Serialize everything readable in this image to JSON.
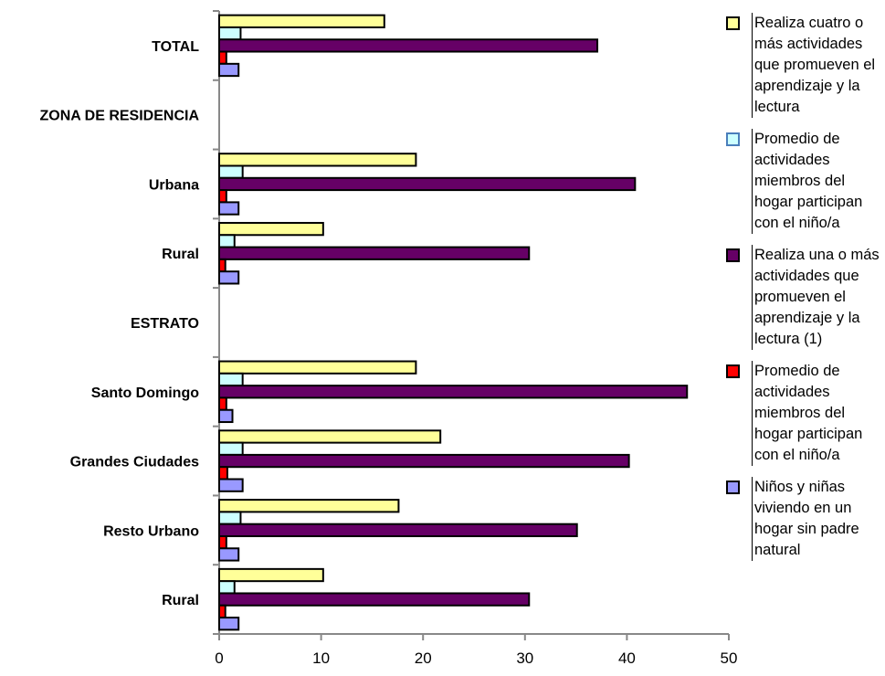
{
  "chart_data": {
    "type": "bar",
    "orientation": "horizontal",
    "categories": [
      "TOTAL",
      "ZONA DE RESIDENCIA",
      "Urbana",
      "Rural",
      "ESTRATO",
      "Santo Domingo",
      "Grandes Ciudades",
      "Resto Urbano",
      "Rural"
    ],
    "series": [
      {
        "name": "Realiza cuatro o más actividades que promueven el aprendizaje  y la lectura",
        "color": "#FFFF99",
        "values": [
          16.2,
          null,
          19.3,
          10.2,
          null,
          19.3,
          21.7,
          17.6,
          10.2
        ]
      },
      {
        "name": "Promedio de actividades miembros del hogar participan con el niño/a",
        "color": "#CCFFFF",
        "values": [
          2.1,
          null,
          2.3,
          1.5,
          null,
          2.3,
          2.3,
          2.1,
          1.5
        ]
      },
      {
        "name": "Realiza una o más actividades que promueven el aprendizaje  y la lectura (1)",
        "color": "#660066",
        "values": [
          37.1,
          null,
          40.8,
          30.4,
          null,
          45.9,
          40.2,
          35.1,
          30.4
        ]
      },
      {
        "name": "Promedio de actividades miembros del hogar participan con el niño/a",
        "color": "#FF0000",
        "values": [
          0.7,
          null,
          0.7,
          0.6,
          null,
          0.7,
          0.8,
          0.7,
          0.6
        ]
      },
      {
        "name": "Niños y niñas viviendo en un hogar sin padre natural",
        "color": "#9999FF",
        "values": [
          1.9,
          null,
          1.9,
          1.9,
          null,
          1.3,
          2.3,
          1.9,
          1.9
        ]
      }
    ],
    "xlim": [
      0,
      50
    ],
    "xticks": [
      "0",
      "10",
      "20",
      "30",
      "40",
      "50"
    ],
    "grid": false,
    "legend_position": "right"
  }
}
